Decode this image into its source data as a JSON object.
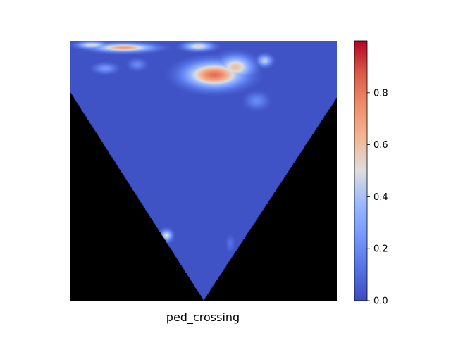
{
  "chart_data": {
    "type": "heatmap",
    "title": "",
    "xlabel": "ped_crossing",
    "ylabel": "",
    "colormap": "coolwarm",
    "colorbar": {
      "range": [
        0.0,
        1.0
      ],
      "ticks": [
        0.0,
        0.2,
        0.4,
        0.6,
        0.8
      ],
      "tick_labels": [
        "0.0",
        "0.2",
        "0.4",
        "0.6",
        "0.8"
      ]
    },
    "mask_color": "#000000",
    "background_value": 0.02,
    "hotspots": [
      {
        "x": 0.54,
        "y": 0.13,
        "rx": 0.1,
        "ry": 0.045,
        "value": 0.82
      },
      {
        "x": 0.62,
        "y": 0.1,
        "rx": 0.06,
        "ry": 0.04,
        "value": 0.6
      },
      {
        "x": 0.48,
        "y": 0.02,
        "rx": 0.05,
        "ry": 0.015,
        "value": 0.55
      },
      {
        "x": 0.73,
        "y": 0.075,
        "rx": 0.025,
        "ry": 0.02,
        "value": 0.45
      },
      {
        "x": 0.2,
        "y": 0.025,
        "rx": 0.1,
        "ry": 0.015,
        "value": 0.7
      },
      {
        "x": 0.08,
        "y": 0.015,
        "rx": 0.05,
        "ry": 0.012,
        "value": 0.55
      },
      {
        "x": 0.13,
        "y": 0.105,
        "rx": 0.04,
        "ry": 0.018,
        "value": 0.25
      },
      {
        "x": 0.25,
        "y": 0.09,
        "rx": 0.03,
        "ry": 0.02,
        "value": 0.2
      },
      {
        "x": 0.7,
        "y": 0.23,
        "rx": 0.04,
        "ry": 0.03,
        "value": 0.2
      },
      {
        "x": 0.36,
        "y": 0.75,
        "rx": 0.02,
        "ry": 0.02,
        "value": 0.5
      },
      {
        "x": 0.6,
        "y": 0.78,
        "rx": 0.015,
        "ry": 0.03,
        "value": 0.12
      }
    ]
  }
}
